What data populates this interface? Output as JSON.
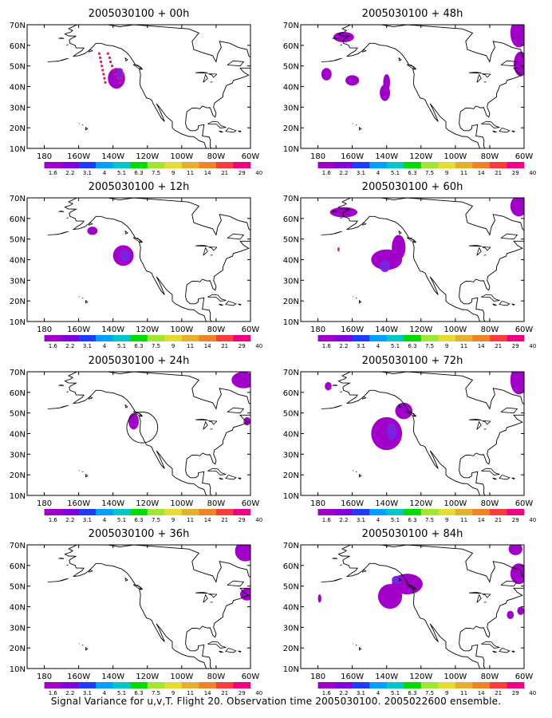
{
  "panels": [
    {
      "title": "2005030100 + 00h",
      "blobs": [
        {
          "lon": -138,
          "lat": 44,
          "rx": 5,
          "ry": 5,
          "level": 0
        },
        {
          "lon": -136,
          "lat": 46,
          "rx": 2,
          "ry": 3,
          "level": 1
        }
      ],
      "flight_track": [
        [
          -148,
          56
        ],
        [
          -147.5,
          54
        ],
        [
          -147,
          52
        ],
        [
          -146.5,
          50
        ],
        [
          -146,
          48
        ],
        [
          -145.5,
          46
        ],
        [
          -145,
          44
        ],
        [
          -144.5,
          42
        ],
        [
          -143,
          56
        ],
        [
          -142,
          54
        ],
        [
          -141.5,
          52
        ],
        [
          -140.5,
          50
        ],
        [
          -139.5,
          48
        ],
        [
          -138.5,
          46
        ],
        [
          -137.5,
          44
        ],
        [
          -136,
          42
        ],
        [
          -135,
          44
        ],
        [
          -134,
          46
        ],
        [
          -135,
          48
        ]
      ]
    },
    {
      "title": "2005030100 + 48h",
      "blobs": [
        {
          "lon": -165,
          "lat": 64,
          "rx": 6,
          "ry": 2.5,
          "level": 0
        },
        {
          "lon": -175,
          "lat": 46,
          "rx": 3,
          "ry": 3,
          "level": 0
        },
        {
          "lon": -160,
          "lat": 43,
          "rx": 4,
          "ry": 2.5,
          "level": 0
        },
        {
          "lon": -141,
          "lat": 37,
          "rx": 3,
          "ry": 4,
          "level": 0
        },
        {
          "lon": -140,
          "lat": 42,
          "rx": 2,
          "ry": 4,
          "level": 0
        },
        {
          "lon": -63,
          "lat": 66,
          "rx": 5,
          "ry": 7,
          "level": 0
        },
        {
          "lon": -62,
          "lat": 51,
          "rx": 4,
          "ry": 6,
          "level": 0
        }
      ]
    },
    {
      "title": "2005030100 + 12h",
      "blobs": [
        {
          "lon": -152,
          "lat": 54,
          "rx": 3,
          "ry": 2,
          "level": 0
        },
        {
          "lon": -134,
          "lat": 42,
          "rx": 6,
          "ry": 5,
          "level": 0
        },
        {
          "lon": -133,
          "lat": 42,
          "rx": 3,
          "ry": 3,
          "level": 1
        }
      ]
    },
    {
      "title": "2005030100 + 60h",
      "blobs": [
        {
          "lon": -165,
          "lat": 63,
          "rx": 8,
          "ry": 2.5,
          "level": 0
        },
        {
          "lon": -140,
          "lat": 40,
          "rx": 9,
          "ry": 5,
          "level": 0
        },
        {
          "lon": -133,
          "lat": 46,
          "rx": 4,
          "ry": 6,
          "level": 0
        },
        {
          "lon": -141,
          "lat": 37,
          "rx": 3,
          "ry": 3,
          "level": 1
        },
        {
          "lon": -168,
          "lat": 45,
          "rx": 0.6,
          "ry": 1,
          "level": 2
        },
        {
          "lon": -63,
          "lat": 66,
          "rx": 5,
          "ry": 5,
          "level": 0
        }
      ]
    },
    {
      "title": "2005030100 + 24h",
      "blobs": [
        {
          "lon": -128,
          "lat": 46,
          "rx": 3,
          "ry": 4,
          "level": 0
        },
        {
          "lon": -64,
          "lat": 66,
          "rx": 7,
          "ry": 4,
          "level": 0
        },
        {
          "lon": -62,
          "lat": 46,
          "rx": 2,
          "ry": 2,
          "level": 0
        }
      ],
      "circle": {
        "lon": -123,
        "lat": 43,
        "radius_deg": 9
      }
    },
    {
      "title": "2005030100 + 72h",
      "blobs": [
        {
          "lon": -174,
          "lat": 63,
          "rx": 2,
          "ry": 2,
          "level": 0
        },
        {
          "lon": -140,
          "lat": 40,
          "rx": 9,
          "ry": 8,
          "level": 0
        },
        {
          "lon": -130,
          "lat": 51,
          "rx": 5,
          "ry": 4,
          "level": 0
        },
        {
          "lon": -137,
          "lat": 41,
          "rx": 3,
          "ry": 4,
          "level": 1
        },
        {
          "lon": -63,
          "lat": 66,
          "rx": 5,
          "ry": 7,
          "level": 0
        }
      ]
    },
    {
      "title": "2005030100 + 36h",
      "blobs": [
        {
          "lon": -63,
          "lat": 67,
          "rx": 6,
          "ry": 5,
          "level": 0
        },
        {
          "lon": -62,
          "lat": 46,
          "rx": 4,
          "ry": 3,
          "level": 0
        }
      ]
    },
    {
      "title": "2005030100 + 84h",
      "blobs": [
        {
          "lon": -179,
          "lat": 44,
          "rx": 1,
          "ry": 2,
          "level": 0
        },
        {
          "lon": -138,
          "lat": 45,
          "rx": 7,
          "ry": 6,
          "level": 0
        },
        {
          "lon": -128,
          "lat": 51,
          "rx": 9,
          "ry": 5,
          "level": 0
        },
        {
          "lon": -134,
          "lat": 53,
          "rx": 3,
          "ry": 2,
          "level": 1
        },
        {
          "lon": -68,
          "lat": 36,
          "rx": 2,
          "ry": 2,
          "level": 0
        },
        {
          "lon": -62,
          "lat": 38,
          "rx": 2,
          "ry": 2,
          "level": 0
        },
        {
          "lon": -65,
          "lat": 68,
          "rx": 4,
          "ry": 3,
          "level": 0
        },
        {
          "lon": -63,
          "lat": 56,
          "rx": 5,
          "ry": 5,
          "level": 0
        }
      ]
    }
  ],
  "axes": {
    "lon_range": [
      -190,
      -60
    ],
    "lat_range": [
      10,
      70
    ],
    "lat_ticks": [
      {
        "v": 10,
        "label": "10N"
      },
      {
        "v": 20,
        "label": "20N"
      },
      {
        "v": 30,
        "label": "30N"
      },
      {
        "v": 40,
        "label": "40N"
      },
      {
        "v": 50,
        "label": "50N"
      },
      {
        "v": 60,
        "label": "60N"
      },
      {
        "v": 70,
        "label": "70N"
      }
    ],
    "lon_ticks": [
      {
        "v": -180,
        "label": "180"
      },
      {
        "v": -160,
        "label": "160W"
      },
      {
        "v": -140,
        "label": "140W"
      },
      {
        "v": -120,
        "label": "120W"
      },
      {
        "v": -100,
        "label": "100W"
      },
      {
        "v": -80,
        "label": "80W"
      },
      {
        "v": -60,
        "label": "60W"
      }
    ]
  },
  "colorbar": {
    "colors": [
      "#a000c8",
      "#8200dc",
      "#1e3cff",
      "#00a0ff",
      "#00c8c8",
      "#00dc00",
      "#a0e632",
      "#e6dc32",
      "#e6af2d",
      "#f08228",
      "#fa3c3c",
      "#f00082"
    ],
    "labels": [
      "1.6",
      "2.2",
      "3.1",
      "4",
      "5.1",
      "6.3",
      "7.5",
      "9",
      "11",
      "14",
      "21",
      "29",
      "40"
    ]
  },
  "colors": {
    "contour_fill": "#a000c8",
    "contour_inner": "#7a22e0",
    "track": "#e0186a",
    "coast": "#000000"
  },
  "caption": "Signal Variance for u,v,T. Flight 20. Observation time 2005030100. 2005022600 ensemble."
}
